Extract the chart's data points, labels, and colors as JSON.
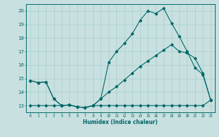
{
  "xlabel": "Humidex (Indice chaleur)",
  "background_color": "#c8e0e0",
  "grid_color": "#a8cccc",
  "line_color": "#006666",
  "xlim": [
    -0.5,
    23.5
  ],
  "ylim": [
    12.5,
    20.5
  ],
  "xticks": [
    0,
    1,
    2,
    3,
    4,
    5,
    6,
    7,
    8,
    9,
    10,
    11,
    12,
    13,
    14,
    15,
    16,
    17,
    18,
    19,
    20,
    21,
    22,
    23
  ],
  "yticks": [
    13,
    14,
    15,
    16,
    17,
    18,
    19,
    20
  ],
  "line1_x": [
    0,
    1,
    2,
    3,
    4,
    5,
    6,
    7,
    8,
    9,
    10,
    11,
    12,
    13,
    14,
    15,
    16,
    17,
    18,
    19,
    20,
    21,
    22,
    23
  ],
  "line1_y": [
    14.85,
    14.7,
    14.75,
    13.5,
    13.0,
    13.05,
    12.9,
    12.85,
    13.0,
    13.5,
    14.0,
    14.4,
    14.9,
    15.4,
    15.9,
    16.3,
    16.7,
    17.1,
    17.5,
    17.0,
    16.9,
    16.5,
    15.4,
    13.4
  ],
  "line2_x": [
    0,
    1,
    2,
    3,
    4,
    5,
    6,
    7,
    8,
    9,
    10,
    11,
    12,
    13,
    14,
    15,
    16,
    17,
    18,
    19,
    20,
    21,
    22,
    23
  ],
  "line2_y": [
    14.85,
    14.7,
    14.75,
    13.5,
    13.0,
    13.05,
    12.9,
    12.85,
    13.0,
    13.5,
    16.2,
    17.0,
    17.6,
    18.3,
    19.3,
    20.0,
    19.8,
    20.2,
    19.1,
    18.1,
    17.0,
    15.8,
    15.3,
    13.4
  ],
  "line3_x": [
    0,
    1,
    2,
    3,
    4,
    5,
    6,
    7,
    8,
    9,
    10,
    11,
    12,
    13,
    14,
    15,
    16,
    17,
    18,
    19,
    20,
    21,
    22,
    23
  ],
  "line3_y": [
    13.0,
    13.0,
    13.0,
    13.0,
    13.0,
    13.05,
    12.9,
    12.85,
    13.0,
    13.0,
    13.0,
    13.0,
    13.0,
    13.0,
    13.0,
    13.0,
    13.0,
    13.0,
    13.0,
    13.0,
    13.0,
    13.0,
    13.0,
    13.4
  ]
}
